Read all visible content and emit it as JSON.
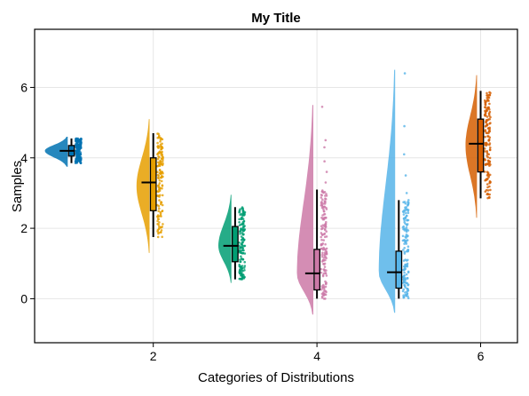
{
  "chart_data": {
    "type": "raincloud",
    "title": "My Title",
    "xlabel": "Categories of Distributions",
    "ylabel": "Samples",
    "xlim": [
      0.55,
      6.45
    ],
    "ylim": [
      -1.25,
      7.65
    ],
    "xticks": [
      2,
      4,
      6
    ],
    "yticks": [
      0,
      2,
      4,
      6
    ],
    "grid": true,
    "series": [
      {
        "category": 1,
        "color": "#0072b2",
        "min": 3.85,
        "q1": 4.05,
        "median": 4.2,
        "q3": 4.35,
        "max": 4.55,
        "cloud_min": 3.75,
        "cloud_max": 4.6,
        "cloud_peak": 4.2,
        "cloud_width": 0.28,
        "outliers": []
      },
      {
        "category": 2,
        "color": "#e69f00",
        "min": 1.75,
        "q1": 2.5,
        "median": 3.3,
        "q3": 4.0,
        "max": 4.7,
        "cloud_min": 1.3,
        "cloud_max": 5.1,
        "cloud_peak": 3.2,
        "cloud_width": 0.16,
        "outliers": []
      },
      {
        "category": 3,
        "color": "#009e73",
        "min": 0.55,
        "q1": 1.05,
        "median": 1.5,
        "q3": 2.05,
        "max": 2.6,
        "cloud_min": 0.45,
        "cloud_max": 2.95,
        "cloud_peak": 1.5,
        "cloud_width": 0.16,
        "outliers": []
      },
      {
        "category": 4,
        "color": "#cc79a7",
        "min": 0.0,
        "q1": 0.25,
        "median": 0.72,
        "q3": 1.4,
        "max": 3.1,
        "cloud_min": -0.45,
        "cloud_max": 5.5,
        "cloud_peak": 0.7,
        "cloud_width": 0.2,
        "outliers": [
          3.3,
          3.6,
          3.9,
          4.3,
          4.5,
          5.45
        ]
      },
      {
        "category": 5,
        "color": "#56b4e9",
        "min": 0.0,
        "q1": 0.3,
        "median": 0.75,
        "q3": 1.35,
        "max": 2.8,
        "cloud_min": -0.4,
        "cloud_max": 6.5,
        "cloud_peak": 0.75,
        "cloud_width": 0.2,
        "outliers": [
          3.0,
          3.5,
          4.1,
          4.9,
          6.4
        ]
      },
      {
        "category": 6,
        "color": "#d55e00",
        "min": 2.85,
        "q1": 3.6,
        "median": 4.4,
        "q3": 5.1,
        "max": 5.9,
        "cloud_min": 2.3,
        "cloud_max": 6.35,
        "cloud_peak": 4.35,
        "cloud_width": 0.14,
        "outliers": []
      }
    ]
  }
}
